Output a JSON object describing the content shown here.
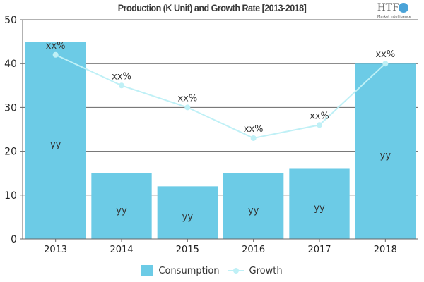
{
  "chart_data": {
    "type": "bar",
    "title": "Production (K Unit) and Growth Rate [2013-2018]",
    "categories": [
      "2013",
      "2014",
      "2015",
      "2016",
      "2017",
      "2018"
    ],
    "ylim": [
      0,
      50
    ],
    "yticks": [
      0,
      10,
      20,
      30,
      40,
      50
    ],
    "grid": true,
    "legend_position": "bottom",
    "series": [
      {
        "name": "Consumption",
        "type": "bar",
        "color": "#6ccbe6",
        "values": [
          45,
          15,
          12,
          15,
          16,
          40
        ],
        "data_labels": [
          "yy",
          "yy",
          "yy",
          "yy",
          "yy",
          "yy"
        ]
      },
      {
        "name": "Growth",
        "type": "line",
        "color": "#bff0f6",
        "values": [
          42,
          35,
          30,
          23,
          26,
          40
        ],
        "data_labels": [
          "xx%",
          "xx%",
          "xx%",
          "xx%",
          "xx%",
          "xx%"
        ]
      }
    ]
  },
  "logo": {
    "text": "HTF",
    "subtext": "Market Intelligence"
  }
}
